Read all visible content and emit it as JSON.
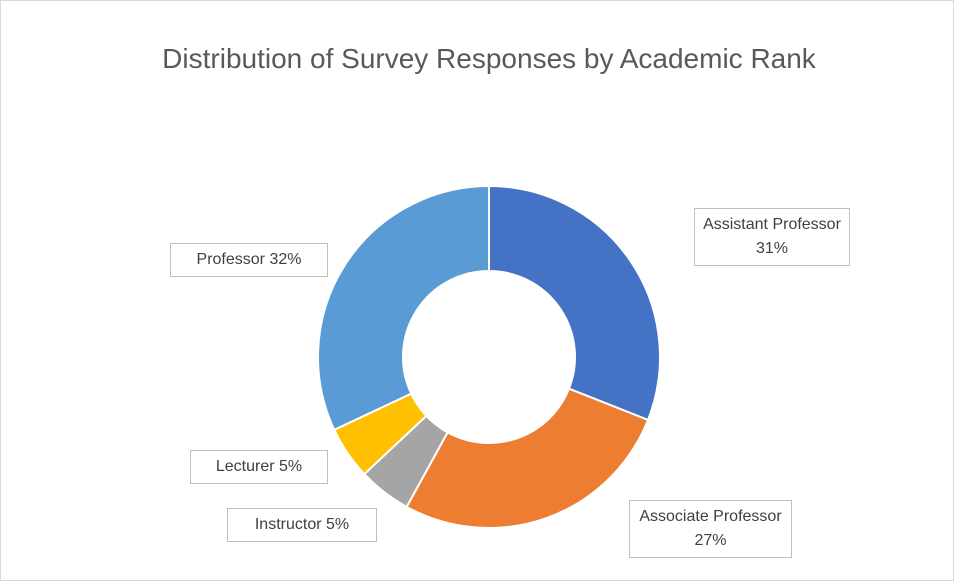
{
  "chart_data": {
    "type": "donut",
    "title": "Distribution of Survey Responses by Academic Rank",
    "categories": [
      "Assistant Professor",
      "Associate Professor",
      "Instructor",
      "Lecturer",
      "Professor"
    ],
    "values": [
      31,
      27,
      5,
      5,
      32
    ],
    "value_labels": [
      "31%",
      "27%",
      "5%",
      "5%",
      "32%"
    ],
    "colors": [
      "#4472c4",
      "#ed7d31",
      "#a5a5a5",
      "#ffc000",
      "#5b9bd5"
    ]
  }
}
